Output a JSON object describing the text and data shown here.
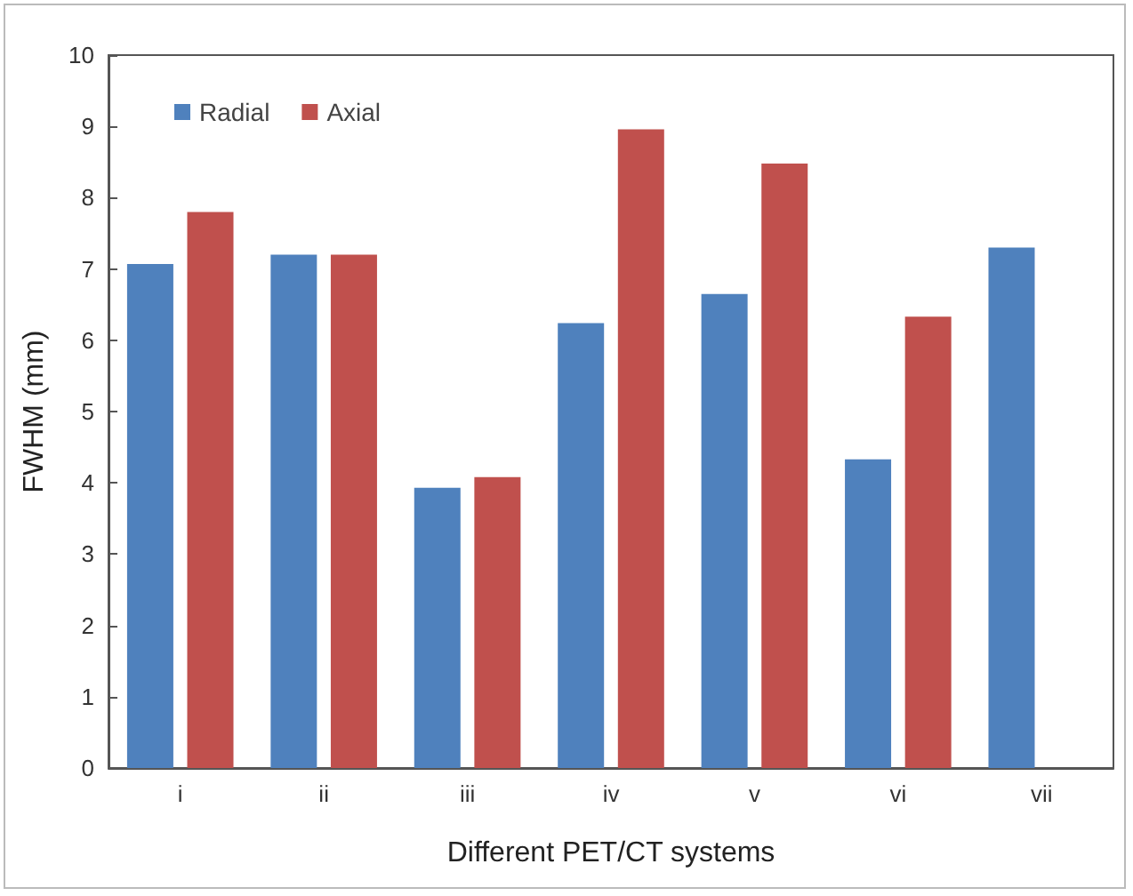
{
  "chart_data": {
    "type": "bar",
    "xlabel": "Different PET/CT systems",
    "ylabel": "FWHM (mm)",
    "categories": [
      "i",
      "ii",
      "iii",
      "iv",
      "v",
      "vi",
      "vii"
    ],
    "series": [
      {
        "name": "Radial",
        "color": "#4f81bd",
        "values": [
          7.07,
          7.2,
          3.93,
          6.24,
          6.65,
          4.33,
          7.3
        ]
      },
      {
        "name": "Axial",
        "color": "#c0504d",
        "values": [
          7.8,
          7.2,
          4.08,
          8.96,
          8.48,
          6.33,
          null
        ]
      }
    ],
    "ylim": [
      0,
      10
    ],
    "yticks": [
      0,
      1,
      2,
      3,
      4,
      5,
      6,
      7,
      8,
      9,
      10
    ],
    "grid": false,
    "legend": "top left"
  }
}
